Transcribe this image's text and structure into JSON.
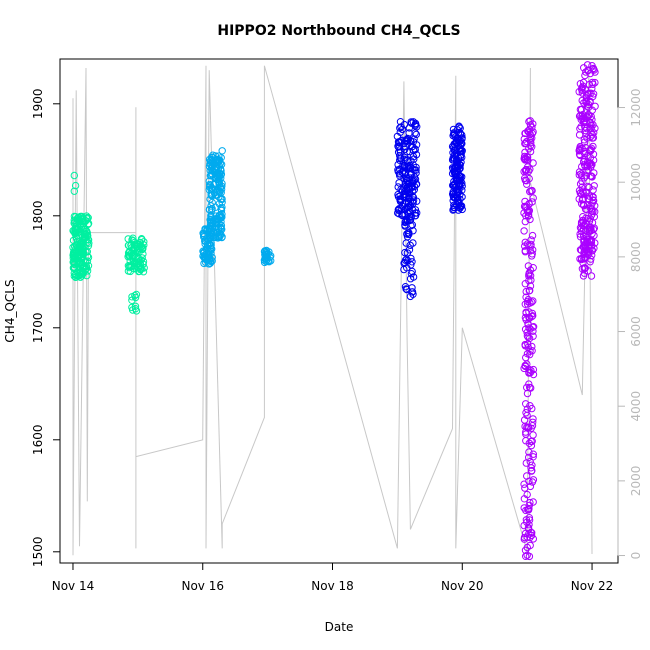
{
  "chart_data": {
    "type": "scatter",
    "title": "HIPPO2 Northbound CH4_QCLS",
    "xlabel": "Date",
    "ylabel": "CH4_QCLS",
    "x_ticks": [
      {
        "label": "Nov 14",
        "day": 14
      },
      {
        "label": "Nov 16",
        "day": 16
      },
      {
        "label": "Nov 18",
        "day": 18
      },
      {
        "label": "Nov 20",
        "day": 20
      },
      {
        "label": "Nov 22",
        "day": 22
      }
    ],
    "xlim": [
      13.8,
      22.4
    ],
    "ylim": [
      1490,
      1940
    ],
    "y_ticks": [
      1500,
      1600,
      1700,
      1800,
      1900
    ],
    "y2lim": [
      -200,
      13300
    ],
    "y2_ticks": [
      0,
      2000,
      4000,
      6000,
      8000,
      10000,
      12000
    ],
    "y2_color": "#b8b8b8",
    "grid": false,
    "series": [
      {
        "color": "#00f0a0",
        "clusters": [
          {
            "x": [
              14.0,
              14.25
            ],
            "y": [
              1745,
              1800
            ],
            "n": 200
          },
          {
            "x": [
              14.85,
              15.1
            ],
            "y": [
              1750,
              1780
            ],
            "n": 90
          },
          {
            "x": [
              14.9,
              14.98
            ],
            "y": [
              1715,
              1730
            ],
            "n": 10
          }
        ],
        "points": [
          [
            14.02,
            1836
          ],
          [
            14.02,
            1822
          ],
          [
            14.04,
            1827
          ]
        ]
      },
      {
        "color": "#00aaee",
        "clusters": [
          {
            "x": [
              16.0,
              16.15
            ],
            "y": [
              1757,
              1790
            ],
            "n": 70
          },
          {
            "x": [
              16.1,
              16.3
            ],
            "y": [
              1780,
              1855
            ],
            "n": 170
          },
          {
            "x": [
              16.95,
              17.05
            ],
            "y": [
              1758,
              1770
            ],
            "n": 25
          }
        ],
        "points": [
          [
            16.3,
            1858
          ],
          [
            16.25,
            1845
          ]
        ]
      },
      {
        "color": "#0000ee",
        "clusters": [
          {
            "x": [
              19.0,
              19.3
            ],
            "y": [
              1800,
              1885
            ],
            "n": 180
          },
          {
            "x": [
              19.1,
              19.25
            ],
            "y": [
              1730,
              1800
            ],
            "n": 45
          },
          {
            "x": [
              19.85,
              20.0
            ],
            "y": [
              1805,
              1880
            ],
            "n": 150
          }
        ],
        "points": [
          [
            19.2,
            1728
          ],
          [
            19.95,
            1880
          ]
        ]
      },
      {
        "color": "#aa00ff",
        "clusters": [
          {
            "x": [
              20.95,
              21.1
            ],
            "y": [
              1495,
              1885
            ],
            "n": 230
          },
          {
            "x": [
              21.8,
              22.05
            ],
            "y": [
              1760,
              1935
            ],
            "n": 220
          },
          {
            "x": [
              21.85,
              22.0
            ],
            "y": [
              1745,
              1800
            ],
            "n": 40
          }
        ],
        "points": [
          [
            21.0,
            1497
          ],
          [
            22.0,
            1934
          ],
          [
            21.05,
            1660
          ]
        ]
      }
    ],
    "flight_track": {
      "color": "#c8c8c8",
      "description_points": [
        {
          "x": 14.0,
          "y": 1905
        },
        {
          "x": 14.0,
          "y": 1497
        },
        {
          "x": 14.05,
          "y": 1912
        },
        {
          "x": 14.1,
          "y": 1505
        },
        {
          "x": 14.2,
          "y": 1932
        },
        {
          "x": 14.22,
          "y": 1545
        },
        {
          "x": 14.24,
          "y": 1785
        },
        {
          "x": 14.97,
          "y": 1785
        },
        {
          "x": 14.97,
          "y": 1897
        },
        {
          "x": 14.97,
          "y": 1503
        },
        {
          "x": 14.97,
          "y": 1585
        },
        {
          "x": 16.0,
          "y": 1600
        },
        {
          "x": 16.05,
          "y": 1934
        },
        {
          "x": 16.05,
          "y": 1503
        },
        {
          "x": 16.1,
          "y": 1930
        },
        {
          "x": 16.3,
          "y": 1503
        },
        {
          "x": 16.3,
          "y": 1525
        },
        {
          "x": 16.95,
          "y": 1620
        },
        {
          "x": 16.95,
          "y": 1934
        },
        {
          "x": 19.0,
          "y": 1503
        },
        {
          "x": 19.1,
          "y": 1920
        },
        {
          "x": 19.15,
          "y": 1690
        },
        {
          "x": 19.2,
          "y": 1520
        },
        {
          "x": 19.85,
          "y": 1610
        },
        {
          "x": 19.9,
          "y": 1925
        },
        {
          "x": 19.9,
          "y": 1503
        },
        {
          "x": 20.0,
          "y": 1700
        },
        {
          "x": 21.0,
          "y": 1500
        },
        {
          "x": 21.05,
          "y": 1932
        },
        {
          "x": 21.05,
          "y": 1830
        },
        {
          "x": 21.85,
          "y": 1640
        },
        {
          "x": 21.95,
          "y": 1930
        },
        {
          "x": 22.0,
          "y": 1498
        }
      ]
    }
  }
}
